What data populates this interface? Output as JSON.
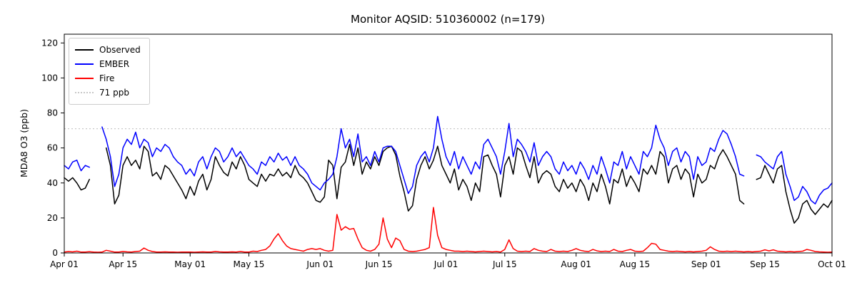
{
  "chart_data": {
    "type": "line",
    "title": "Monitor AQSID: 510360002 (n=179)",
    "xlabel": "",
    "ylabel": "MDA8 O3 (ppb)",
    "ylim": [
      0,
      125
    ],
    "y_ticks": [
      0,
      20,
      40,
      60,
      80,
      100,
      120
    ],
    "x_start": "Apr 01",
    "x_end": "Oct 01",
    "frequency": "daily",
    "n_days": 184,
    "n_observed": 179,
    "x_ticks": [
      {
        "label": "Apr 01",
        "day": 0
      },
      {
        "label": "Apr 15",
        "day": 14
      },
      {
        "label": "May 01",
        "day": 30
      },
      {
        "label": "May 15",
        "day": 44
      },
      {
        "label": "Jun 01",
        "day": 61
      },
      {
        "label": "Jun 15",
        "day": 75
      },
      {
        "label": "Jul 01",
        "day": 91
      },
      {
        "label": "Jul 15",
        "day": 105
      },
      {
        "label": "Aug 01",
        "day": 122
      },
      {
        "label": "Aug 15",
        "day": 136
      },
      {
        "label": "Sep 01",
        "day": 153
      },
      {
        "label": "Sep 15",
        "day": 167
      },
      {
        "label": "Oct 01",
        "day": 183
      }
    ],
    "threshold": {
      "value": 71,
      "label": "71 ppb",
      "color": "#c8c8c8",
      "style": "dotted"
    },
    "legend": {
      "location": "upper left",
      "entries": [
        {
          "label": "Observed",
          "color": "#000000",
          "style": "solid"
        },
        {
          "label": "EMBER",
          "color": "#0000ff",
          "style": "solid"
        },
        {
          "label": "Fire",
          "color": "#ff0000",
          "style": "solid"
        },
        {
          "label": "71 ppb",
          "color": "#c8c8c8",
          "style": "dotted"
        }
      ]
    },
    "series": [
      {
        "name": "Observed",
        "color": "#000000",
        "values": [
          43,
          41,
          43,
          40,
          36,
          37,
          42,
          null,
          null,
          null,
          60,
          50,
          28,
          33,
          50,
          55,
          50,
          53,
          48,
          61,
          58,
          44,
          46,
          42,
          50,
          48,
          44,
          40,
          36,
          31,
          38,
          33,
          41,
          45,
          36,
          42,
          55,
          50,
          46,
          44,
          52,
          48,
          55,
          50,
          42,
          40,
          38,
          45,
          41,
          45,
          44,
          48,
          44,
          46,
          43,
          50,
          45,
          43,
          40,
          35,
          30,
          29,
          32,
          53,
          50,
          31,
          49,
          52,
          62,
          50,
          60,
          45,
          52,
          48,
          55,
          50,
          58,
          60,
          61,
          56,
          44,
          35,
          24,
          27,
          42,
          50,
          55,
          48,
          53,
          61,
          50,
          45,
          40,
          48,
          36,
          42,
          38,
          30,
          40,
          35,
          55,
          56,
          50,
          45,
          32,
          50,
          55,
          45,
          60,
          58,
          50,
          43,
          55,
          40,
          45,
          47,
          45,
          38,
          35,
          42,
          37,
          40,
          35,
          42,
          38,
          30,
          40,
          35,
          45,
          38,
          28,
          42,
          40,
          48,
          38,
          44,
          40,
          35,
          48,
          45,
          50,
          45,
          58,
          55,
          40,
          48,
          50,
          42,
          48,
          45,
          32,
          45,
          40,
          42,
          50,
          48,
          55,
          59,
          55,
          50,
          45,
          30,
          28,
          null,
          null,
          42,
          43,
          50,
          45,
          40,
          48,
          50,
          35,
          25,
          17,
          20,
          28,
          30,
          25,
          22,
          25,
          28,
          26,
          30
        ]
      },
      {
        "name": "EMBER",
        "color": "#0000ff",
        "values": [
          50,
          48,
          52,
          53,
          47,
          50,
          49,
          null,
          null,
          72,
          65,
          55,
          38,
          45,
          60,
          65,
          62,
          69,
          60,
          65,
          63,
          55,
          60,
          58,
          62,
          60,
          55,
          52,
          50,
          45,
          48,
          44,
          52,
          55,
          48,
          55,
          60,
          58,
          52,
          55,
          60,
          55,
          58,
          54,
          50,
          48,
          45,
          52,
          50,
          55,
          52,
          57,
          53,
          55,
          50,
          55,
          50,
          48,
          45,
          40,
          38,
          36,
          40,
          42,
          45,
          55,
          71,
          60,
          65,
          55,
          68,
          52,
          55,
          50,
          58,
          52,
          60,
          61,
          61,
          58,
          50,
          42,
          34,
          38,
          50,
          55,
          58,
          52,
          60,
          78,
          65,
          55,
          50,
          58,
          48,
          55,
          50,
          45,
          52,
          48,
          62,
          65,
          60,
          55,
          45,
          58,
          74,
          55,
          65,
          62,
          58,
          52,
          63,
          50,
          55,
          58,
          55,
          48,
          45,
          52,
          47,
          50,
          45,
          52,
          48,
          42,
          50,
          45,
          55,
          48,
          40,
          52,
          50,
          58,
          48,
          55,
          50,
          45,
          58,
          55,
          60,
          73,
          65,
          60,
          50,
          58,
          60,
          52,
          58,
          55,
          42,
          55,
          50,
          52,
          60,
          58,
          65,
          70,
          68,
          62,
          55,
          45,
          44,
          null,
          null,
          56,
          55,
          52,
          50,
          48,
          55,
          58,
          45,
          38,
          30,
          32,
          38,
          35,
          30,
          28,
          33,
          36,
          37,
          40
        ]
      },
      {
        "name": "Fire",
        "color": "#ff0000",
        "values": [
          0.5,
          0.8,
          0.6,
          1,
          0.5,
          0.5,
          0.7,
          0.5,
          0.4,
          0.5,
          1.5,
          1,
          0.5,
          0.5,
          0.8,
          0.6,
          0.5,
          0.8,
          1,
          2.8,
          1.5,
          0.8,
          0.5,
          0.5,
          0.6,
          0.5,
          0.5,
          0.4,
          0.5,
          0.5,
          0.5,
          0.4,
          0.5,
          0.6,
          0.5,
          0.5,
          0.8,
          0.6,
          0.5,
          0.5,
          0.6,
          0.5,
          0.8,
          0.5,
          0.5,
          1,
          0.8,
          1.5,
          2,
          4,
          8,
          11,
          7,
          4,
          2.5,
          2,
          1.5,
          1,
          2,
          2.5,
          2,
          2.5,
          1.5,
          1,
          1.5,
          22,
          13,
          15,
          13.5,
          14,
          8,
          3,
          1.5,
          1,
          2,
          5,
          20,
          8,
          3,
          8.5,
          7,
          2,
          1,
          0.8,
          1,
          1.5,
          2,
          3,
          26,
          10,
          3,
          2,
          1.5,
          1,
          1,
          0.8,
          1,
          0.8,
          0.6,
          0.8,
          1,
          0.8,
          0.6,
          0.8,
          0.5,
          2,
          7.5,
          2.5,
          1,
          0.8,
          1,
          0.8,
          2.5,
          1.5,
          1,
          0.8,
          2,
          1,
          0.8,
          1,
          0.8,
          1.5,
          2.5,
          1.5,
          1,
          0.8,
          2,
          1.2,
          0.8,
          1,
          0.8,
          2,
          1,
          0.8,
          1.5,
          2,
          1,
          0.8,
          1,
          3,
          5.5,
          5,
          2,
          1.5,
          1,
          0.8,
          1,
          0.8,
          0.6,
          0.8,
          0.6,
          0.8,
          1,
          1.5,
          3.5,
          2,
          1,
          0.8,
          1,
          0.8,
          1,
          0.8,
          0.6,
          0.8,
          0.6,
          0.8,
          1,
          1.8,
          1.2,
          1.8,
          1,
          0.8,
          0.6,
          0.8,
          0.6,
          0.8,
          1,
          2,
          1.5,
          0.8,
          0.6,
          0.5,
          0.4,
          0.5
        ]
      }
    ]
  }
}
